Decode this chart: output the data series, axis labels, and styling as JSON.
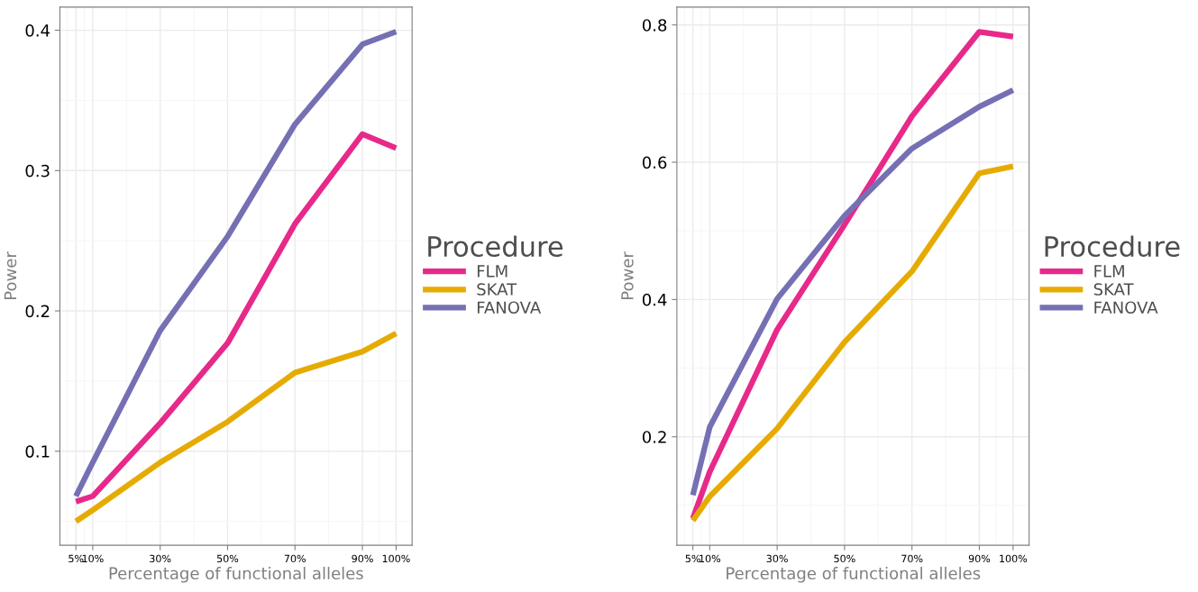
{
  "chart_data": [
    {
      "type": "line",
      "xlabel": "Percentage of functional alleles",
      "ylabel": "Power",
      "legend_title": "Procedure",
      "legend": "right",
      "grid": true,
      "x": [
        5,
        10,
        30,
        50,
        70,
        90,
        100
      ],
      "xlim": [
        0.25,
        104.75
      ],
      "xticks": [
        {
          "value": 5,
          "label": "5%"
        },
        {
          "value": 10,
          "label": "10%"
        },
        {
          "value": 30,
          "label": "30%"
        },
        {
          "value": 50,
          "label": "50%"
        },
        {
          "value": 70,
          "label": "70%"
        },
        {
          "value": 90,
          "label": "90%"
        },
        {
          "value": 100,
          "label": "100%"
        }
      ],
      "ylim": [
        0.033,
        0.4165
      ],
      "yticks": [
        0.1,
        0.2,
        0.3,
        0.4
      ],
      "series": [
        {
          "name": "FLM",
          "color": "#e7298a",
          "values": [
            0.064,
            0.068,
            0.12,
            0.177,
            0.262,
            0.326,
            0.316
          ]
        },
        {
          "name": "SKAT",
          "color": "#e6ab02",
          "values": [
            0.05,
            0.058,
            0.092,
            0.121,
            0.156,
            0.171,
            0.184
          ]
        },
        {
          "name": "FANOVA",
          "color": "#7570b3",
          "values": [
            0.068,
            0.092,
            0.186,
            0.253,
            0.333,
            0.39,
            0.399
          ]
        }
      ]
    },
    {
      "type": "line",
      "xlabel": "Percentage of functional alleles",
      "ylabel": "Power",
      "legend_title": "Procedure",
      "legend": "right",
      "grid": true,
      "x": [
        5,
        10,
        30,
        50,
        70,
        90,
        100
      ],
      "xlim": [
        0.25,
        104.75
      ],
      "xticks": [
        {
          "value": 5,
          "label": "5%"
        },
        {
          "value": 10,
          "label": "10%"
        },
        {
          "value": 30,
          "label": "30%"
        },
        {
          "value": 50,
          "label": "50%"
        },
        {
          "value": 70,
          "label": "70%"
        },
        {
          "value": 90,
          "label": "90%"
        },
        {
          "value": 100,
          "label": "100%"
        }
      ],
      "ylim": [
        0.042,
        0.826
      ],
      "yticks": [
        0.2,
        0.4,
        0.6,
        0.8
      ],
      "series": [
        {
          "name": "FLM",
          "color": "#e7298a",
          "values": [
            0.081,
            0.149,
            0.356,
            0.509,
            0.667,
            0.79,
            0.783
          ]
        },
        {
          "name": "SKAT",
          "color": "#e6ab02",
          "values": [
            0.078,
            0.113,
            0.212,
            0.338,
            0.441,
            0.584,
            0.594
          ]
        },
        {
          "name": "FANOVA",
          "color": "#7570b3",
          "values": [
            0.115,
            0.214,
            0.401,
            0.522,
            0.62,
            0.681,
            0.705
          ]
        }
      ]
    }
  ]
}
